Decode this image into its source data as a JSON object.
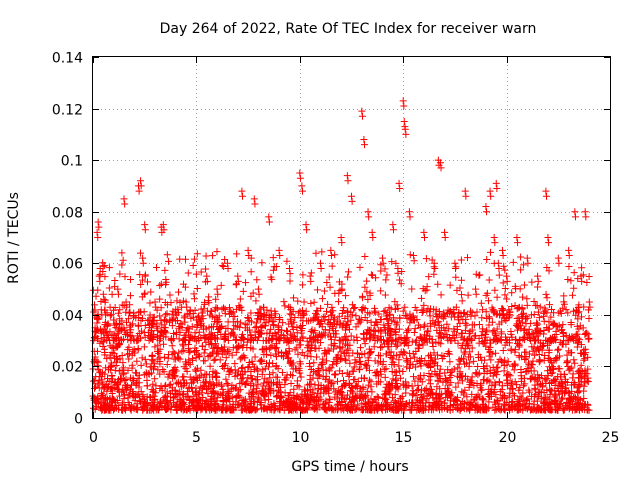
{
  "chart_data": {
    "type": "scatter",
    "title": "Day 264 of 2022, Rate Of TEC Index for receiver warn",
    "xlabel": "GPS time / hours",
    "ylabel": "ROTI / TECUs",
    "xlim": [
      0,
      25
    ],
    "ylim": [
      0,
      0.14
    ],
    "xticks": [
      0,
      5,
      10,
      15,
      20,
      25
    ],
    "xtick_labels": [
      "0",
      "5",
      "10",
      "15",
      "20",
      "25"
    ],
    "yticks": [
      0,
      0.02,
      0.04,
      0.06,
      0.08,
      0.1,
      0.12,
      0.14
    ],
    "ytick_labels": [
      "0",
      "0.02",
      "0.04",
      "0.06",
      "0.08",
      "0.1",
      "0.12",
      "0.14"
    ],
    "grid": true,
    "marker": "+",
    "color": "#ff0000",
    "series": [
      {
        "name": "ROTI",
        "x": [
          0.1,
          0.2,
          0.25,
          0.3,
          0.4,
          0.5,
          0.8,
          1.0,
          1.2,
          1.5,
          1.6,
          1.8,
          2.2,
          2.3,
          2.4,
          2.5,
          2.7,
          3.0,
          3.3,
          3.4,
          3.5,
          3.8,
          4.0,
          4.5,
          5.0,
          5.5,
          6.0,
          6.5,
          7.0,
          7.2,
          7.5,
          7.8,
          8.0,
          8.5,
          9.0,
          9.5,
          10.0,
          10.1,
          10.3,
          10.5,
          11.0,
          11.5,
          12.0,
          12.3,
          12.5,
          13.0,
          13.1,
          13.3,
          13.5,
          14.0,
          14.5,
          14.8,
          15.0,
          15.05,
          15.1,
          15.3,
          15.5,
          16.0,
          16.5,
          16.7,
          16.8,
          17.0,
          17.5,
          18.0,
          18.5,
          19.0,
          19.2,
          19.4,
          19.5,
          19.6,
          19.8,
          20.0,
          20.5,
          21.0,
          21.5,
          21.9,
          22.0,
          22.5,
          23.0,
          23.3,
          23.6,
          23.8,
          24.0
        ],
        "y": [
          0.035,
          0.072,
          0.076,
          0.055,
          0.042,
          0.048,
          0.03,
          0.038,
          0.05,
          0.085,
          0.045,
          0.032,
          0.09,
          0.092,
          0.062,
          0.075,
          0.038,
          0.045,
          0.074,
          0.075,
          0.035,
          0.03,
          0.042,
          0.045,
          0.038,
          0.055,
          0.05,
          0.06,
          0.055,
          0.088,
          0.065,
          0.085,
          0.05,
          0.078,
          0.065,
          0.058,
          0.095,
          0.09,
          0.075,
          0.055,
          0.06,
          0.065,
          0.07,
          0.094,
          0.086,
          0.119,
          0.108,
          0.08,
          0.072,
          0.062,
          0.075,
          0.091,
          0.123,
          0.115,
          0.112,
          0.08,
          0.063,
          0.072,
          0.06,
          0.1,
          0.099,
          0.072,
          0.06,
          0.088,
          0.05,
          0.082,
          0.088,
          0.07,
          0.091,
          0.06,
          0.065,
          0.055,
          0.07,
          0.062,
          0.055,
          0.088,
          0.07,
          0.062,
          0.065,
          0.08,
          0.055,
          0.08,
          0.045
        ]
      }
    ]
  }
}
